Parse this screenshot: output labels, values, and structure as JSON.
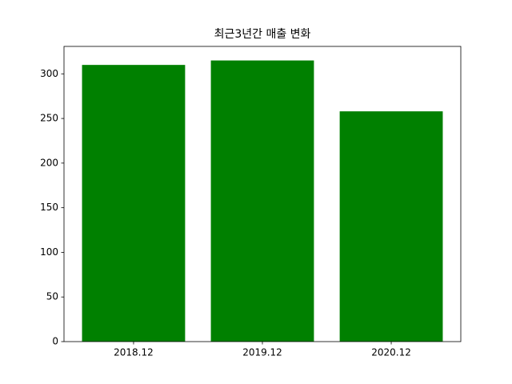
{
  "chart_data": {
    "type": "bar",
    "title": "최근3년간 매출 변화",
    "categories": [
      "2018.12",
      "2019.12",
      "2020.12"
    ],
    "values": [
      310,
      315,
      258
    ],
    "color": "#008000",
    "ylim": [
      0,
      330.75
    ],
    "yticks": [
      0,
      50,
      100,
      150,
      200,
      250,
      300
    ],
    "grid": false
  }
}
